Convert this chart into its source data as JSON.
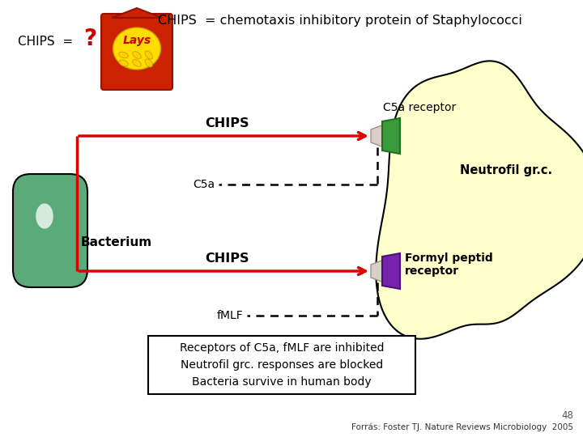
{
  "title": "CHIPS  = chemotaxis inhibitory protein of Staphylococci",
  "chips_label_left": "CHIPS  =",
  "question_mark": "?",
  "bacterium_label": "Bacterium",
  "chips_arrow1_label": "CHIPS",
  "chips_arrow2_label": "CHIPS",
  "c5a_label": "C5a",
  "fmlf_label": "fMLF",
  "c5a_receptor_label": "C5a receptor",
  "neutrofil_label": "Neutrofil gr.c.",
  "formyl_label": "Formyl peptid\nreceptor",
  "summary_line1": "Receptors of C5a, fMLF are inhibited",
  "summary_line2": "Neutrofil grc. responses are blocked",
  "summary_line3": "Bacteria survive in human body",
  "footnote": "Forrás: Foster TJ. Nature Reviews Microbiology  2005",
  "page_num": "48",
  "bg_color": "#ffffff",
  "neutrofil_fill": "#ffffcc",
  "neutrofil_stroke": "#000000",
  "bacterium_fill_outer": "#5aaa7a",
  "bacterium_fill_inner": "#ffffff",
  "bacterium_stroke": "#000000",
  "arrow_color": "#dd0000",
  "dashed_color": "#000000",
  "receptor_c5a_fill": "#3a9a3a",
  "receptor_c5a_cap": "#d0c8c0",
  "receptor_fmlf_fill": "#7722aa",
  "receptor_fmlf_cap": "#d0c8c0",
  "summary_box_color": "#000000"
}
